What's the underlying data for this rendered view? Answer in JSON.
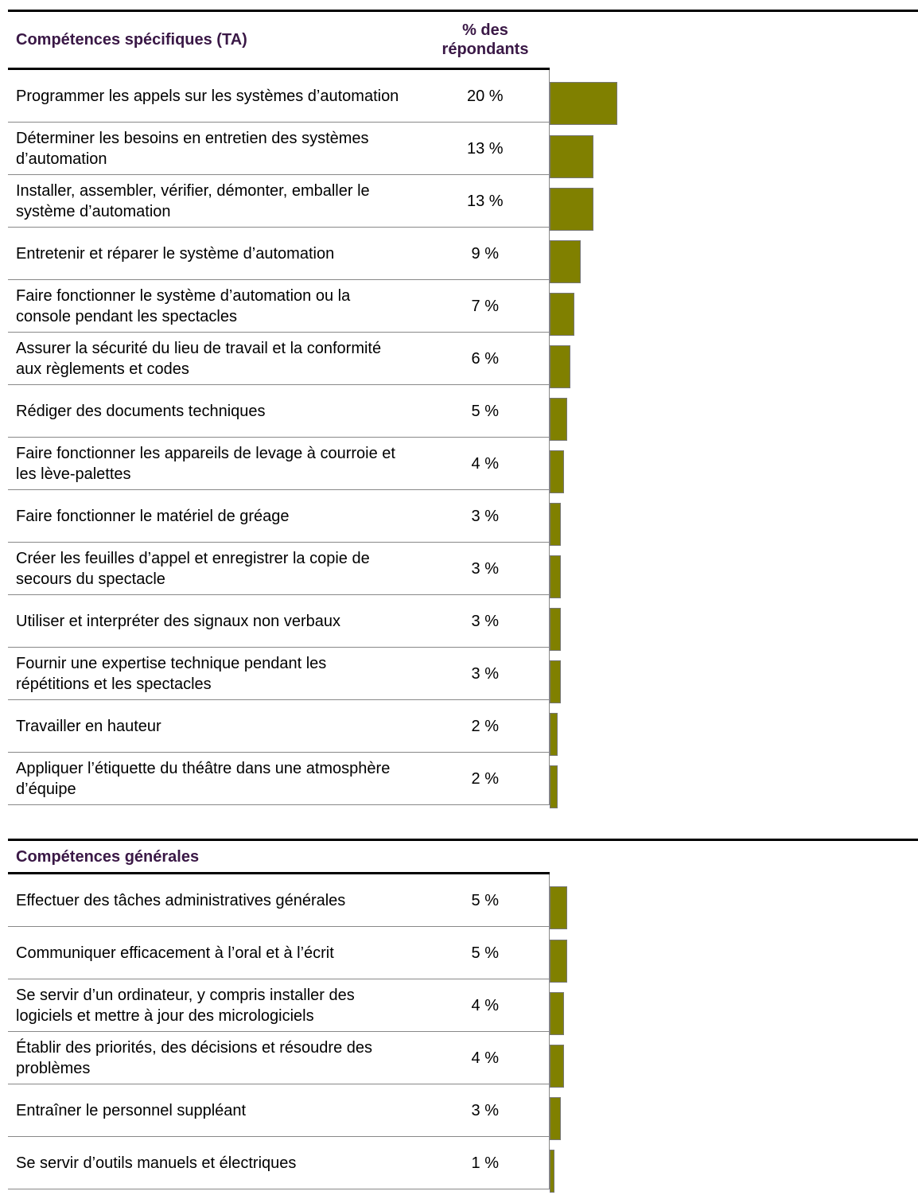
{
  "sections": [
    {
      "title": "Compétences spécifiques (TA)",
      "value_header": "% des répondants",
      "rows": [
        {
          "label": "Programmer les appels sur les systèmes d’automation",
          "value": 20,
          "value_label": "20 %"
        },
        {
          "label": "Déterminer les besoins en entretien des systèmes d’automation",
          "value": 13,
          "value_label": "13 %"
        },
        {
          "label": "Installer, assembler, vérifier, démonter, emballer le système d’automation",
          "value": 13,
          "value_label": "13 %"
        },
        {
          "label": "Entretenir et réparer le système d’automation",
          "value": 9,
          "value_label": "9 %"
        },
        {
          "label": "Faire fonctionner le système d’automation ou la console pendant les spectacles",
          "value": 7,
          "value_label": "7 %"
        },
        {
          "label": "Assurer la sécurité du lieu de travail et la conformité aux règlements et codes",
          "value": 6,
          "value_label": "6 %"
        },
        {
          "label": "Rédiger des documents techniques",
          "value": 5,
          "value_label": "5 %"
        },
        {
          "label": "Faire fonctionner les appareils de levage à courroie et les lève-palettes",
          "value": 4,
          "value_label": "4 %"
        },
        {
          "label": "Faire fonctionner le matériel de gréage",
          "value": 3,
          "value_label": "3 %"
        },
        {
          "label": "Créer les feuilles d’appel et enregistrer la copie de secours du spectacle",
          "value": 3,
          "value_label": "3 %"
        },
        {
          "label": "Utiliser et interpréter des signaux non verbaux",
          "value": 3,
          "value_label": "3 %"
        },
        {
          "label": "Fournir une expertise technique pendant les répétitions et les spectacles",
          "value": 3,
          "value_label": "3 %"
        },
        {
          "label": "Travailler en hauteur",
          "value": 2,
          "value_label": "2 %"
        },
        {
          "label": "Appliquer l’étiquette du théâtre dans une atmosphère d’équipe",
          "value": 2,
          "value_label": "2 %"
        }
      ]
    },
    {
      "title": "Compétences générales",
      "rows": [
        {
          "label": "Effectuer des tâches administratives générales",
          "value": 5,
          "value_label": "5 %"
        },
        {
          "label": "Communiquer efficacement à l’oral et à l’écrit",
          "value": 5,
          "value_label": "5 %"
        },
        {
          "label": "Se servir d’un ordinateur, y compris installer des logiciels et mettre à jour des micrologiciels",
          "value": 4,
          "value_label": "4 %"
        },
        {
          "label": "Établir des priorités, des décisions et résoudre des problèmes",
          "value": 4,
          "value_label": "4 %"
        },
        {
          "label": "Entraîner le personnel suppléant",
          "value": 3,
          "value_label": "3 %"
        },
        {
          "label": "Se servir d’outils manuels et électriques",
          "value": 1,
          "value_label": "1 %"
        }
      ]
    }
  ]
}
